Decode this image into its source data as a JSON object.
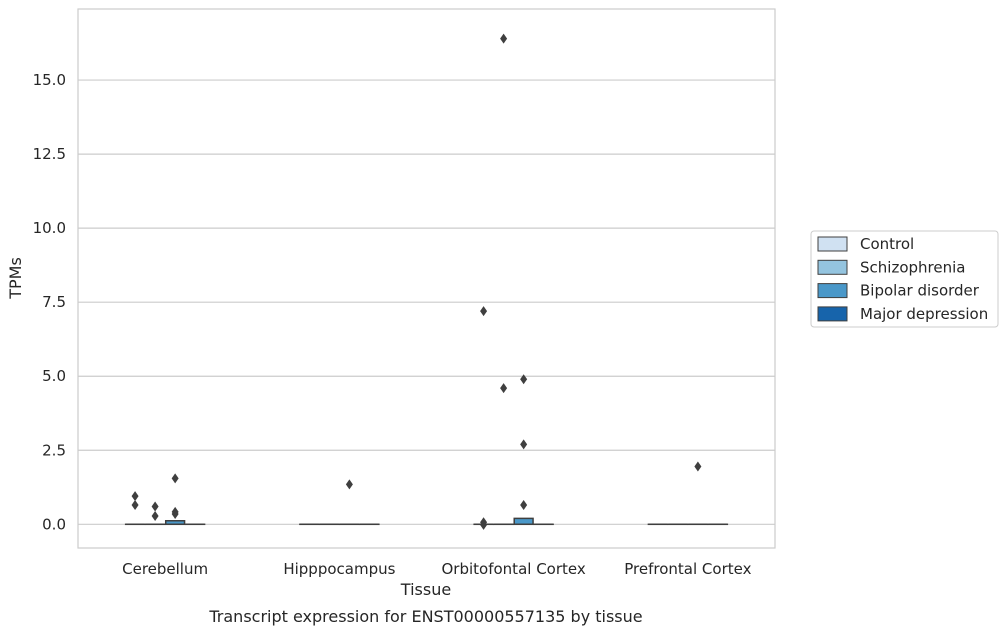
{
  "chart_data": {
    "type": "box",
    "title": "",
    "caption": "Transcript expression for ENST00000557135 by tissue",
    "xlabel": "Tissue",
    "ylabel": "TPMs",
    "ylim": [
      -0.8,
      17.4
    ],
    "yticks": [
      "0.0",
      "2.5",
      "5.0",
      "7.5",
      "10.0",
      "12.5",
      "15.0"
    ],
    "ytick_values": [
      0,
      2.5,
      5,
      7.5,
      10,
      12.5,
      15
    ],
    "grid": "horizontal",
    "categories": [
      "Cerebellum",
      "Hipppocampus",
      "Orbitofontal Cortex",
      "Prefrontal Cortex"
    ],
    "legend": {
      "placement": "center-right-outside",
      "entries": [
        {
          "name": "Control",
          "color": "#d0e1f2"
        },
        {
          "name": "Schizophrenia",
          "color": "#94c4df"
        },
        {
          "name": "Bipolar disorder",
          "color": "#4a98c9"
        },
        {
          "name": "Major depression",
          "color": "#1764ab"
        }
      ]
    },
    "series": [
      {
        "name": "Control",
        "boxes": [
          {
            "q1": 0,
            "median": 0,
            "q3": 0,
            "whislo": 0,
            "whishi": 0,
            "fliers": [
              0.95,
              0.65
            ]
          },
          {
            "q1": 0,
            "median": 0,
            "q3": 0,
            "whislo": 0,
            "whishi": 0,
            "fliers": []
          },
          {
            "q1": 0,
            "median": 0,
            "q3": 0,
            "whislo": 0,
            "whishi": 0,
            "fliers": [
              7.2,
              0.07,
              -0.02
            ]
          },
          {
            "q1": 0,
            "median": 0,
            "q3": 0,
            "whislo": 0,
            "whishi": 0,
            "fliers": []
          }
        ]
      },
      {
        "name": "Schizophrenia",
        "boxes": [
          {
            "q1": 0,
            "median": 0,
            "q3": 0,
            "whislo": 0,
            "whishi": 0,
            "fliers": [
              0.6,
              0.28
            ]
          },
          {
            "q1": 0,
            "median": 0,
            "q3": 0,
            "whislo": 0,
            "whishi": 0,
            "fliers": []
          },
          {
            "q1": 0,
            "median": 0,
            "q3": 0,
            "whislo": 0,
            "whishi": 0,
            "fliers": [
              16.4,
              4.6
            ]
          },
          {
            "q1": 0,
            "median": 0,
            "q3": 0,
            "whislo": 0,
            "whishi": 0,
            "fliers": []
          }
        ]
      },
      {
        "name": "Bipolar disorder",
        "boxes": [
          {
            "q1": 0,
            "median": 0,
            "q3": 0.12,
            "whislo": 0,
            "whishi": 0.12,
            "fliers": [
              1.55,
              0.42,
              0.35
            ]
          },
          {
            "q1": 0,
            "median": 0,
            "q3": 0,
            "whislo": 0,
            "whishi": 0,
            "fliers": [
              1.35
            ]
          },
          {
            "q1": 0,
            "median": 0,
            "q3": 0.2,
            "whislo": 0,
            "whishi": 0.2,
            "fliers": [
              4.9,
              2.7,
              0.65
            ]
          },
          {
            "q1": 0,
            "median": 0,
            "q3": 0,
            "whislo": 0,
            "whishi": 0,
            "fliers": [
              1.95
            ]
          }
        ]
      },
      {
        "name": "Major depression",
        "boxes": [
          {
            "q1": 0,
            "median": 0,
            "q3": 0,
            "whislo": 0,
            "whishi": 0,
            "fliers": []
          },
          {
            "q1": 0,
            "median": 0,
            "q3": 0,
            "whislo": 0,
            "whishi": 0,
            "fliers": []
          },
          {
            "q1": 0,
            "median": 0,
            "q3": 0,
            "whislo": 0,
            "whishi": 0,
            "fliers": []
          },
          {
            "q1": 0,
            "median": 0,
            "q3": 0,
            "whislo": 0,
            "whishi": 0,
            "fliers": []
          }
        ]
      }
    ]
  }
}
